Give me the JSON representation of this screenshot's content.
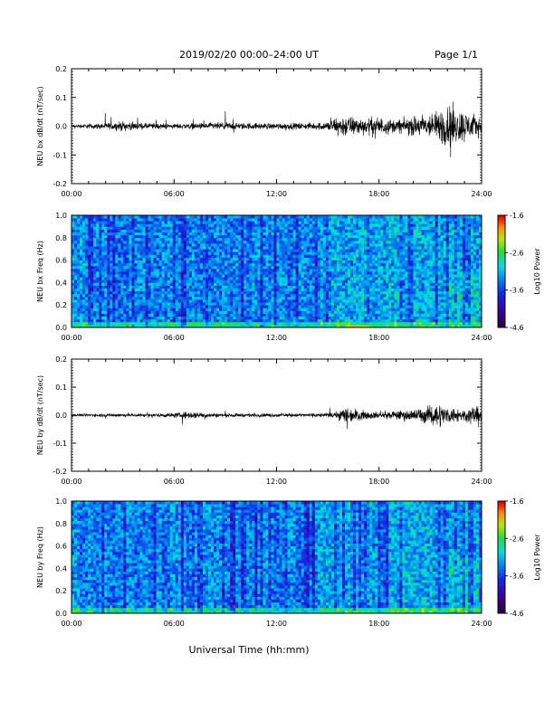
{
  "header": {
    "title": "2019/02/20  00:00–24:00 UT",
    "page": "Page 1/1"
  },
  "xlabel": "Universal Time (hh:mm)",
  "colors": {
    "trace": "#000000",
    "axis": "#000000"
  },
  "chart_data": [
    {
      "type": "line",
      "ylabel": "NEU bx dB/dt (nT/sec)",
      "xlim": [
        0,
        24
      ],
      "ylim": [
        -0.2,
        0.2
      ],
      "x_ticks": [
        "00:00",
        "06:00",
        "12:00",
        "18:00",
        "24:00"
      ],
      "y_ticks": [
        "-0.2",
        "-0.1",
        "0.0",
        "0.1",
        "0.2"
      ],
      "series": [
        {
          "x": [
            0,
            1,
            2,
            3,
            4,
            5,
            6,
            7,
            8,
            9,
            10,
            11,
            12,
            13,
            14,
            15,
            15.5,
            16,
            17,
            18,
            19,
            20,
            20.7,
            21,
            21.5,
            22,
            22.5,
            23,
            23.5,
            24
          ],
          "amplitude": [
            0.01,
            0.015,
            0.02,
            0.03,
            0.02,
            0.02,
            0.015,
            0.02,
            0.02,
            0.025,
            0.02,
            0.02,
            0.02,
            0.02,
            0.02,
            0.03,
            0.06,
            0.07,
            0.05,
            0.06,
            0.04,
            0.06,
            0.08,
            0.07,
            0.1,
            0.15,
            0.12,
            0.1,
            0.08,
            0.05
          ]
        }
      ]
    },
    {
      "type": "heatmap",
      "ylabel": "NEU bx Freq (Hz)",
      "xlim": [
        0,
        24
      ],
      "ylim": [
        0.0,
        1.0
      ],
      "x_ticks": [
        "00:00",
        "06:00",
        "12:00",
        "18:00",
        "24:00"
      ],
      "y_ticks": [
        "0.0",
        "0.2",
        "0.4",
        "0.6",
        "0.8",
        "1.0"
      ],
      "colorbar": {
        "label": "Log10 Power",
        "range": [
          -4.6,
          -1.6
        ],
        "ticks": [
          "-1.6",
          "-2.6",
          "-3.6",
          "-4.6"
        ]
      }
    },
    {
      "type": "line",
      "ylabel": "NEU by dB/dt (nT/sec)",
      "xlim": [
        0,
        24
      ],
      "ylim": [
        -0.2,
        0.2
      ],
      "x_ticks": [
        "00:00",
        "06:00",
        "12:00",
        "18:00",
        "24:00"
      ],
      "y_ticks": [
        "-0.2",
        "-0.1",
        "0.0",
        "0.1",
        "0.2"
      ],
      "series": [
        {
          "x": [
            0,
            1,
            2,
            3,
            4,
            5,
            6,
            7,
            8,
            9,
            10,
            11,
            12,
            13,
            14,
            15,
            15.5,
            16,
            17,
            18,
            19,
            20,
            20.7,
            21,
            21.5,
            22,
            22.5,
            23,
            23.5,
            24
          ],
          "amplitude": [
            0.008,
            0.01,
            0.012,
            0.012,
            0.012,
            0.012,
            0.015,
            0.025,
            0.015,
            0.012,
            0.012,
            0.012,
            0.012,
            0.012,
            0.012,
            0.015,
            0.02,
            0.06,
            0.03,
            0.02,
            0.03,
            0.04,
            0.05,
            0.06,
            0.08,
            0.05,
            0.05,
            0.04,
            0.06,
            0.04
          ]
        }
      ]
    },
    {
      "type": "heatmap",
      "ylabel": "NEU by Freq (Hz)",
      "xlim": [
        0,
        24
      ],
      "ylim": [
        0.0,
        1.0
      ],
      "x_ticks": [
        "00:00",
        "06:00",
        "12:00",
        "18:00",
        "24:00"
      ],
      "y_ticks": [
        "0.0",
        "0.2",
        "0.4",
        "0.6",
        "0.8",
        "1.0"
      ],
      "colorbar": {
        "label": "Log10 Power",
        "range": [
          -4.6,
          -1.6
        ],
        "ticks": [
          "-1.6",
          "-2.6",
          "-3.6",
          "-4.6"
        ]
      }
    }
  ]
}
